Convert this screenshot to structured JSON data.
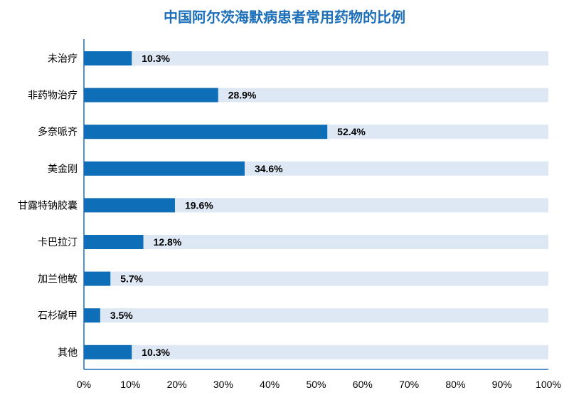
{
  "chart_data": {
    "type": "bar",
    "orientation": "horizontal",
    "title": "中国阿尔茨海默病患者常用药物的比例",
    "categories": [
      "未治疗",
      "非药物治疗",
      "多奈哌齐",
      "美金刚",
      "甘露特钠胶囊",
      "卡巴拉汀",
      "加兰他敏",
      "石杉碱甲",
      "其他"
    ],
    "values": [
      10.3,
      28.9,
      52.4,
      34.6,
      19.6,
      12.8,
      5.7,
      3.5,
      10.3
    ],
    "value_labels": [
      "10.3%",
      "28.9%",
      "52.4%",
      "34.6%",
      "19.6%",
      "12.8%",
      "5.7%",
      "3.5%",
      "10.3%"
    ],
    "xlim": [
      0,
      100
    ],
    "x_ticks": [
      "0%",
      "10%",
      "20%",
      "30%",
      "40%",
      "50%",
      "60%",
      "70%",
      "80%",
      "90%",
      "100%"
    ],
    "background_bar_value": 100,
    "grid": false,
    "legend": "none",
    "colors": {
      "bar": "#0e6fb8",
      "track": "#dde8f4",
      "title": "#1c6fb8",
      "axis": "#1c6fb8"
    }
  }
}
